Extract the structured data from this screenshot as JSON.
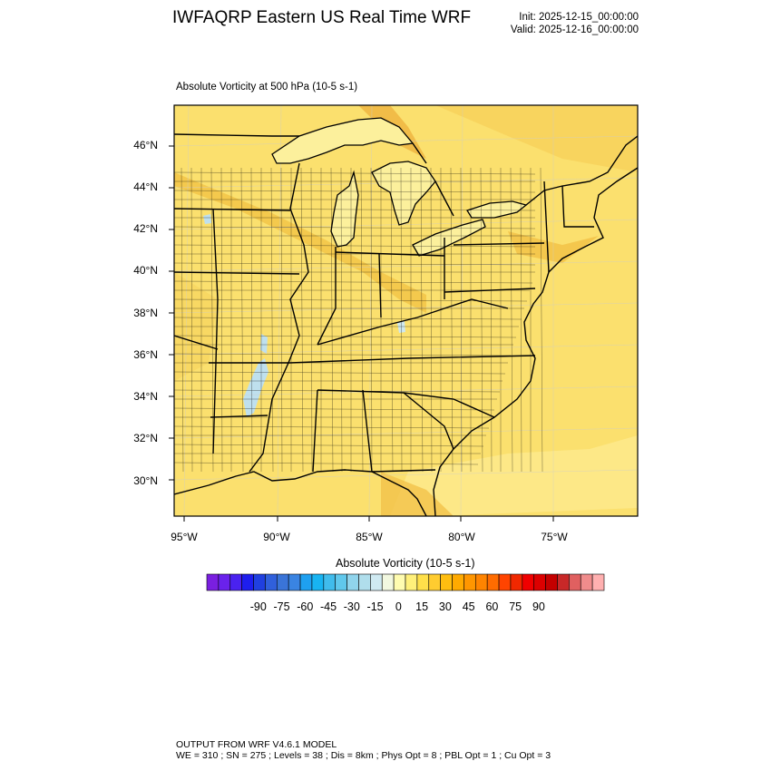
{
  "header": {
    "title": "IWFAQRP Eastern US Real Time WRF",
    "init": "Init: 2025-12-15_00:00:00",
    "valid": "Valid: 2025-12-16_00:00:00"
  },
  "map": {
    "field_title": "Absolute Vorticity at 500 hPa   (10-5 s-1)",
    "lat_labels": [
      "46°N",
      "44°N",
      "42°N",
      "40°N",
      "38°N",
      "36°N",
      "34°N",
      "32°N",
      "30°N"
    ],
    "lon_labels": [
      "95°W",
      "90°W",
      "85°W",
      "80°W",
      "75°W"
    ],
    "background_color": "#FBE06E",
    "water_color": "#FCF09C"
  },
  "colorbar": {
    "title": "Absolute Vorticity  (10-5 s-1)",
    "labels": [
      "-90",
      "-75",
      "-60",
      "-45",
      "-30",
      "-15",
      "0",
      "15",
      "30",
      "45",
      "60",
      "75",
      "90"
    ],
    "colors": [
      "#7A1FE0",
      "#6A22EC",
      "#4A22F0",
      "#1E1EEE",
      "#2040E0",
      "#3060DC",
      "#3A74D8",
      "#3A84E2",
      "#1EA0F0",
      "#18B4F2",
      "#40BCEC",
      "#60C8EC",
      "#90D4EC",
      "#B0DEEC",
      "#D0EAF2",
      "#F2F8E0",
      "#FFFCB0",
      "#FFF07A",
      "#FFE04A",
      "#FFCC30",
      "#FFBE10",
      "#FFAA00",
      "#FF9600",
      "#FF8400",
      "#FF6C00",
      "#FF4400",
      "#F02800",
      "#F00000",
      "#DC0000",
      "#C40000",
      "#C82828",
      "#E06060",
      "#F08C8C",
      "#FFB0B0"
    ]
  },
  "footer": {
    "line1": "OUTPUT FROM WRF V4.6.1 MODEL",
    "line2": "WE = 310 ; SN = 275 ; Levels = 38 ; Dis = 8km ; Phys Opt = 8 ; PBL Opt = 1 ; Cu Opt = 3"
  }
}
